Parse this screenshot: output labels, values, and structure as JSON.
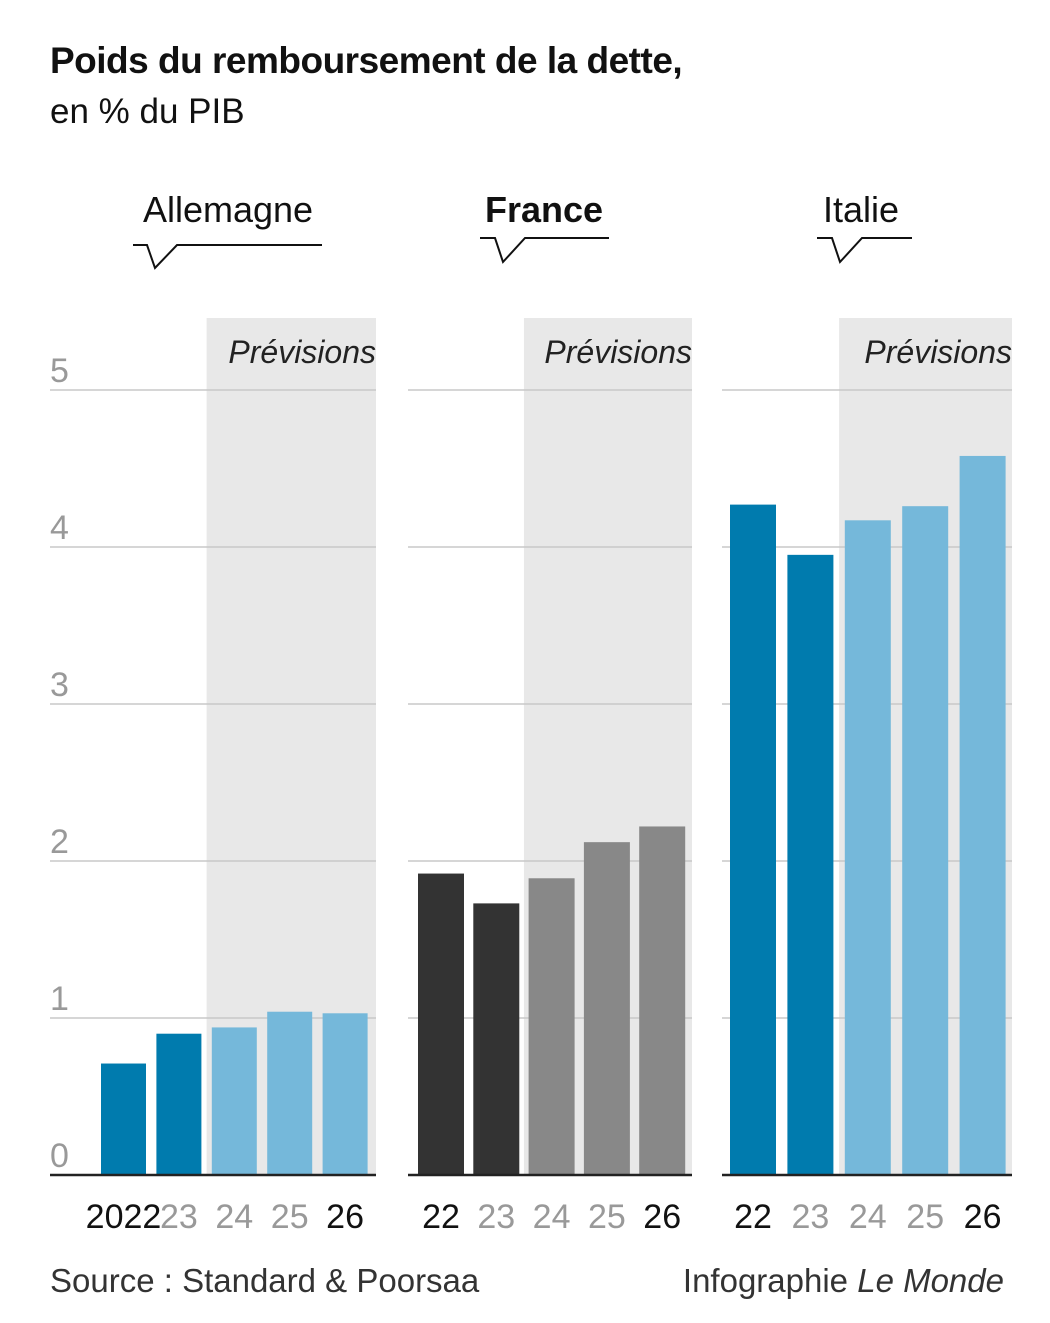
{
  "title": "Poids du remboursement de la dette,",
  "subtitle": "en % du PIB",
  "forecast_label": "Prévisions",
  "source": "Source : Standard & Poorsaa",
  "credit_prefix": "Infographie ",
  "credit_name": "Le Monde",
  "colors": {
    "blue_dark": "#007bae",
    "blue_light": "#75b8da",
    "france_dark": "#333333",
    "france_light": "#888888",
    "forecast_bg": "#e8e8e8",
    "grid": "#c8c8c8",
    "axis_label": "#999999"
  },
  "chart_data": {
    "type": "bar",
    "ylim": [
      0,
      5
    ],
    "yticks": [
      "0",
      "1",
      "2",
      "3",
      "4",
      "5"
    ],
    "panels": [
      {
        "name": "Allemagne",
        "bold": false,
        "categories": [
          "2022",
          "23",
          "24",
          "25",
          "26"
        ],
        "values": [
          0.71,
          0.9,
          0.94,
          1.04,
          1.03
        ],
        "forecast_from_index": 2,
        "scheme": "blue"
      },
      {
        "name": "France",
        "bold": true,
        "categories": [
          "22",
          "23",
          "24",
          "25",
          "26"
        ],
        "values": [
          1.92,
          1.73,
          1.89,
          2.12,
          2.22
        ],
        "forecast_from_index": 2,
        "scheme": "gray"
      },
      {
        "name": "Italie",
        "bold": false,
        "categories": [
          "22",
          "23",
          "24",
          "25",
          "26"
        ],
        "values": [
          4.27,
          3.95,
          4.17,
          4.26,
          4.58
        ],
        "forecast_from_index": 2,
        "scheme": "blue"
      }
    ]
  }
}
